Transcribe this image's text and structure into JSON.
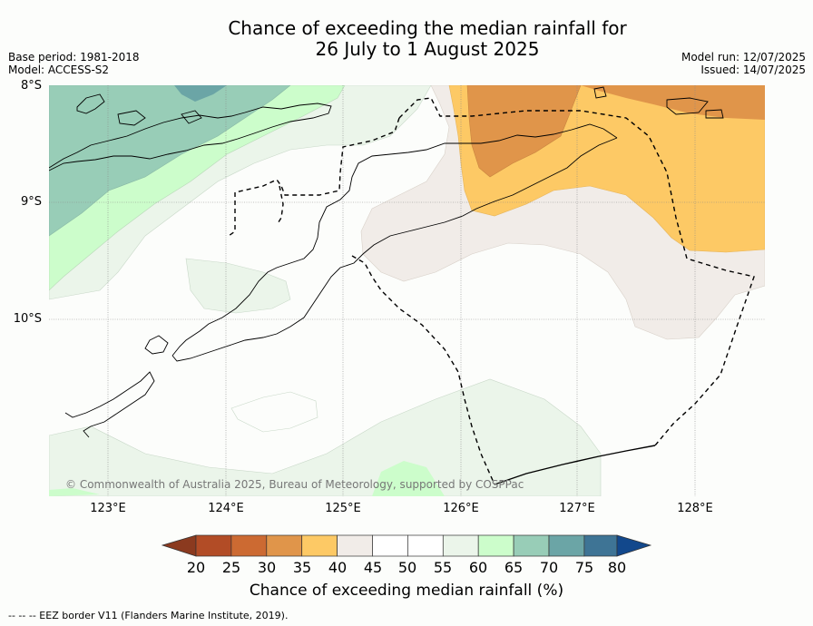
{
  "header": {
    "title_line1": "Chance of exceeding the median rainfall for",
    "title_line2": "26 July to 1 August 2025",
    "base_period": "Base period: 1981-2018",
    "model": "Model: ACCESS-S2",
    "model_run": "Model run: 12/07/2025",
    "issued": "Issued: 14/07/2025"
  },
  "map": {
    "lat_labels": [
      "8°S",
      "9°S",
      "10°S"
    ],
    "lon_labels": [
      "123°E",
      "124°E",
      "125°E",
      "126°E",
      "127°E",
      "128°E"
    ],
    "copyright": "© Commonwealth of Australia 2025, Bureau of Meteorology, supported by COSPPac"
  },
  "colorbar": {
    "ticks": [
      "20",
      "25",
      "30",
      "35",
      "40",
      "45",
      "50",
      "55",
      "60",
      "65",
      "70",
      "75",
      "80"
    ],
    "label": "Chance of exceeding median rainfall (%)",
    "colors": {
      "below20": "#8b3a1f",
      "20_25": "#b24c26",
      "25_30": "#cc6a32",
      "30_35": "#e0954a",
      "35_40": "#fdc965",
      "40_45": "#f1ece8",
      "45_50": "#ffffff",
      "50_55": "#ffffff",
      "55_60": "#ebf5ea",
      "60_65": "#ccfdcb",
      "65_70": "#98cdb7",
      "70_75": "#6ba5a6",
      "75_80": "#3e7495",
      "above80": "#12488c"
    }
  },
  "footer": {
    "eez_legend": "--  --  -- EEZ border V11 (Flanders Marine Institute, 2019)."
  }
}
